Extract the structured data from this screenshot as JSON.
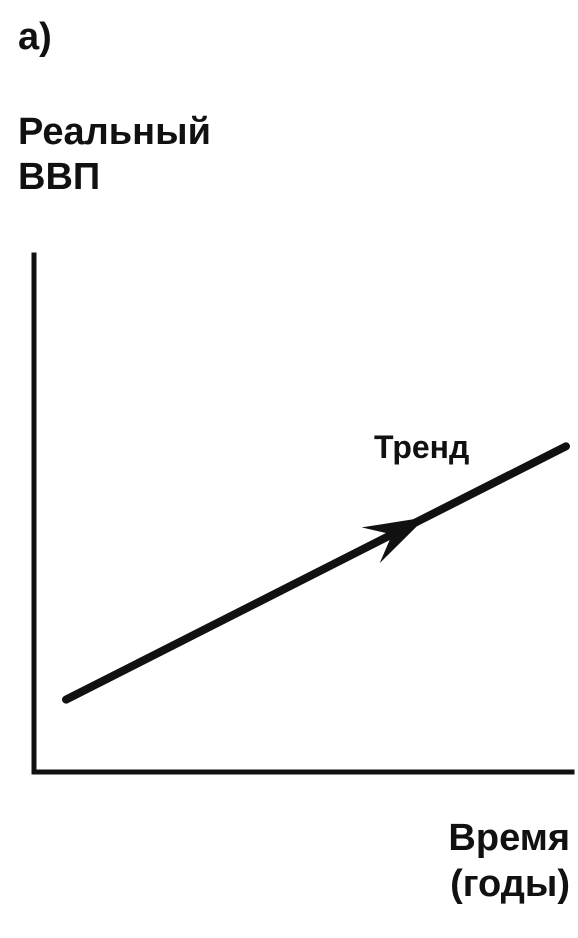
{
  "chart_data": {
    "type": "line",
    "panel_label": "а)",
    "ylabel": "Реальный\nВВП",
    "xlabel": "Время\n(годы)",
    "series": [
      {
        "name": "Тренд",
        "x": [
          0,
          1
        ],
        "y": [
          0.14,
          0.63
        ],
        "arrow_at": 0.67
      }
    ],
    "xlim": [
      0,
      1
    ],
    "ylim": [
      0,
      1
    ],
    "grid": false,
    "ticks": false,
    "colors": {
      "line": "#111111",
      "axis": "#111111",
      "background": "#ffffff"
    }
  }
}
